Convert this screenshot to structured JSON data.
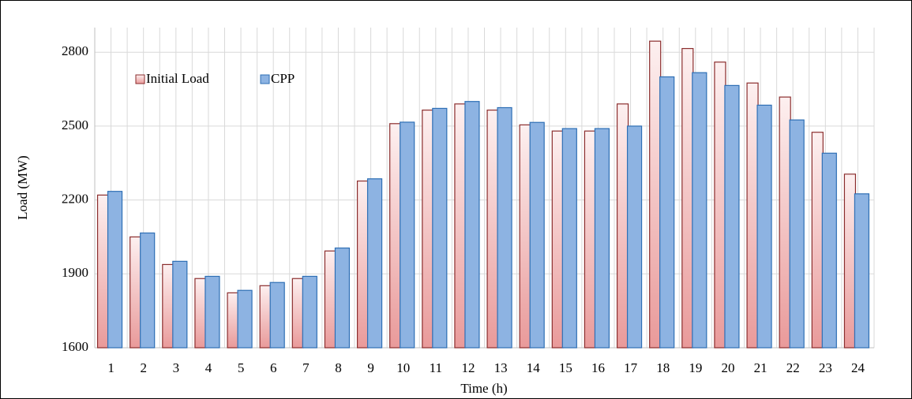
{
  "chart_data": {
    "type": "bar",
    "x_label": "Time (h)",
    "y_label": "Load (MW)",
    "categories": [
      "1",
      "2",
      "3",
      "4",
      "5",
      "6",
      "7",
      "8",
      "9",
      "10",
      "11",
      "12",
      "13",
      "14",
      "15",
      "16",
      "17",
      "18",
      "19",
      "20",
      "21",
      "22",
      "23",
      "24"
    ],
    "series": [
      {
        "name": "Initial Load",
        "color": "#e99a9a",
        "values": [
          2220,
          2050,
          1938,
          1881,
          1823,
          1852,
          1881,
          1993,
          2277,
          2510,
          2565,
          2590,
          2565,
          2505,
          2480,
          2480,
          2590,
          2845,
          2815,
          2760,
          2675,
          2618,
          2475,
          2305
        ]
      },
      {
        "name": "CPP",
        "color": "#8db3e2",
        "values": [
          2235,
          2066,
          1951,
          1890,
          1833,
          1865,
          1890,
          2005,
          2286,
          2516,
          2572,
          2600,
          2575,
          2515,
          2490,
          2490,
          2500,
          2700,
          2717,
          2665,
          2585,
          2525,
          2390,
          2225
        ]
      }
    ],
    "ylim": [
      1600,
      2900
    ],
    "yticks": [
      1600,
      1900,
      2200,
      2500,
      2800
    ],
    "grid": true,
    "legend": "upper left"
  }
}
